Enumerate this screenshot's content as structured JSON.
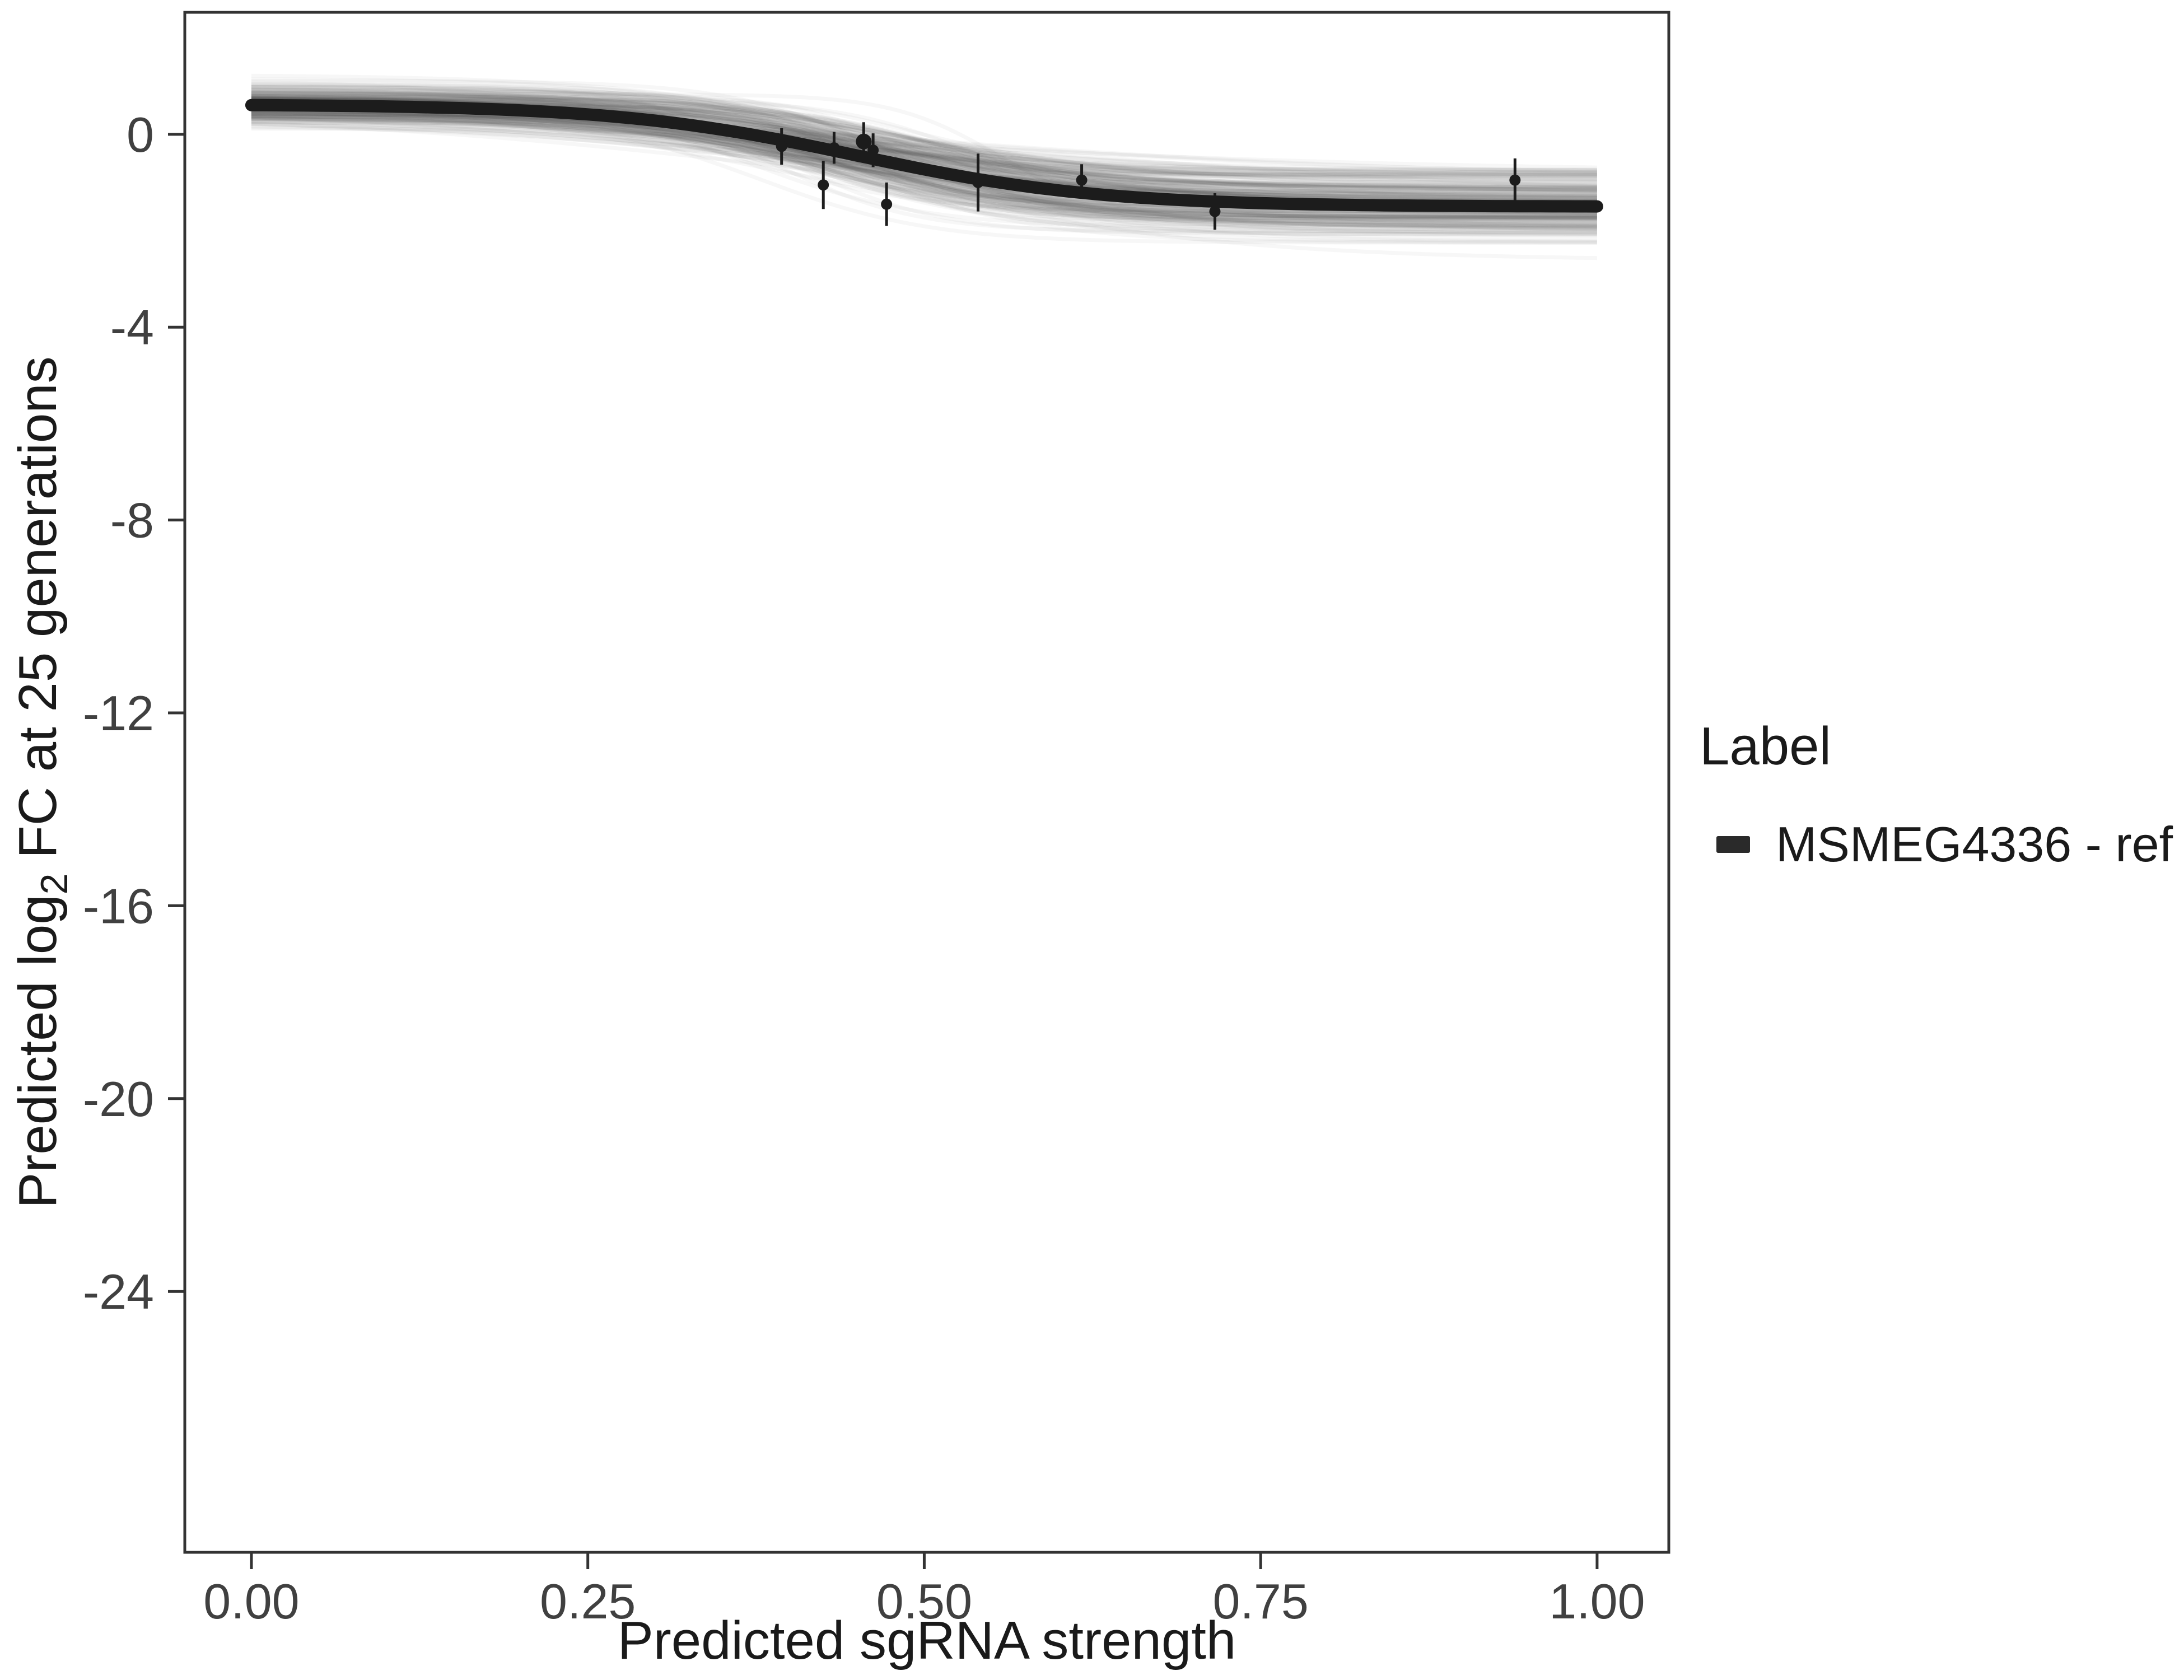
{
  "background": "#ffffff",
  "chart_data": {
    "type": "line",
    "title": "",
    "xlabel": "Predicted sgRNA strength",
    "ylabel": "Predicted log2 FC at 25 generations",
    "ylabel_parts": [
      {
        "t": "Predicted  log"
      },
      {
        "t": "2",
        "sub": true
      },
      {
        "t": " FC at 25 generations"
      }
    ],
    "xlim": [
      -0.0495,
      1.0533
    ],
    "ylim": [
      -29.41,
      2.53
    ],
    "x_ticks": [
      0,
      0.25,
      0.5,
      0.75,
      1
    ],
    "x_tick_labels": [
      "0.00",
      "0.25",
      "0.50",
      "0.75",
      "1.00"
    ],
    "y_ticks": [
      0,
      -4,
      -8,
      -12,
      -16,
      -20,
      -24
    ],
    "y_tick_labels": [
      "0",
      "-4",
      "-8",
      "-12",
      "-16",
      "-20",
      "-24"
    ],
    "grid": false,
    "legend": {
      "title": "Label",
      "position": "right",
      "entries": [
        "MSMEG4336 - ref"
      ]
    },
    "colors": {
      "fit_line": "#1c1c1c",
      "ensemble_line": "#4a4a4a",
      "point": "#1c1c1c",
      "axis": "#333333",
      "tick_text": "#404040",
      "title_text": "#1a1a1a"
    },
    "fit_curve": {
      "name": "MSMEG4336 - ref",
      "model": "logistic",
      "top": 0.62,
      "bottom": -1.5,
      "x0": 0.45,
      "scale": 0.09,
      "width": 22
    },
    "fit_curve_samples": {
      "x": [
        0,
        0.05,
        0.1,
        0.15,
        0.2,
        0.25,
        0.3,
        0.35,
        0.4,
        0.45,
        0.5,
        0.55,
        0.6,
        0.65,
        0.7,
        0.75,
        0.8,
        0.85,
        0.9,
        0.95,
        1.0
      ],
      "y": [
        0.606,
        0.595,
        0.577,
        0.547,
        0.496,
        0.412,
        0.283,
        0.095,
        -0.153,
        -0.44,
        -0.727,
        -0.975,
        -1.163,
        -1.293,
        -1.376,
        -1.427,
        -1.457,
        -1.475,
        -1.486,
        -1.492,
        -1.495
      ]
    },
    "ensemble": {
      "n": 240,
      "seed": 42,
      "opacity": 0.045,
      "width": 7,
      "top_sd": 0.22,
      "bottom_sd": 0.34,
      "x0_sd": 0.04,
      "scale_log_sd": 0.35
    },
    "points": [
      {
        "x": 0.394,
        "y": -0.25,
        "err": 0.38
      },
      {
        "x": 0.425,
        "y": -1.05,
        "err": 0.5
      },
      {
        "x": 0.433,
        "y": -0.28,
        "err": 0.33
      },
      {
        "x": 0.455,
        "y": -0.15,
        "err": 0.4,
        "r": 14
      },
      {
        "x": 0.462,
        "y": -0.33,
        "err": 0.35
      },
      {
        "x": 0.472,
        "y": -1.45,
        "err": 0.45
      },
      {
        "x": 0.54,
        "y": -1.0,
        "err": 0.6
      },
      {
        "x": 0.617,
        "y": -0.95,
        "err": 0.33
      },
      {
        "x": 0.716,
        "y": -1.6,
        "err": 0.38
      },
      {
        "x": 0.939,
        "y": -0.95,
        "err": 0.45
      }
    ],
    "point_style": {
      "radius": 10,
      "errorbar_width": 5
    }
  }
}
